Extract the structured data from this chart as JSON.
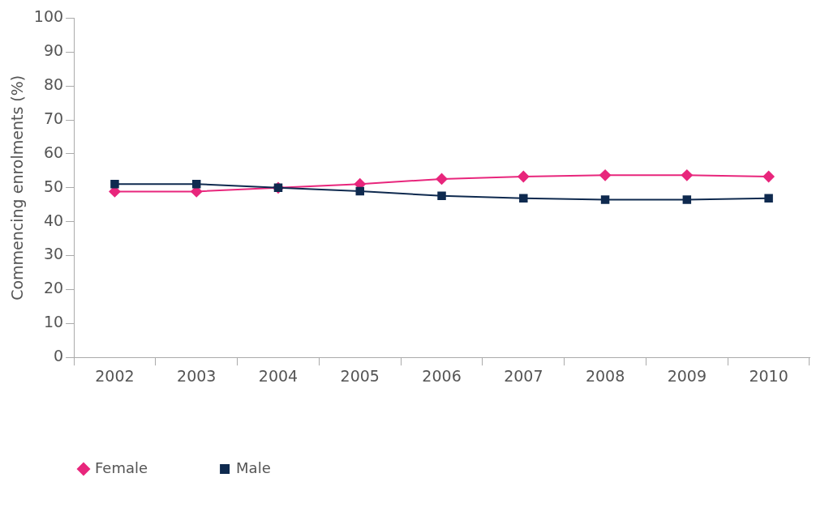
{
  "chart_data": {
    "type": "line",
    "ylabel": "Commencing enrolments (%)",
    "categories": [
      "2002",
      "2003",
      "2004",
      "2005",
      "2006",
      "2007",
      "2008",
      "2009",
      "2010"
    ],
    "series": [
      {
        "name": "Female",
        "color": "#e8267c",
        "marker": "diamond",
        "values": [
          48.9,
          48.9,
          50,
          51.1,
          52.6,
          53.3,
          53.7,
          53.7,
          53.3
        ]
      },
      {
        "name": "Male",
        "color": "#0f2a4f",
        "marker": "square",
        "values": [
          51.1,
          51.1,
          50,
          49,
          47.6,
          46.9,
          46.5,
          46.5,
          46.9
        ]
      }
    ],
    "ylim": [
      0,
      100
    ],
    "yticks": [
      0,
      10,
      20,
      30,
      40,
      50,
      60,
      70,
      80,
      90,
      100
    ],
    "grid": false,
    "legend": "bottom left"
  }
}
